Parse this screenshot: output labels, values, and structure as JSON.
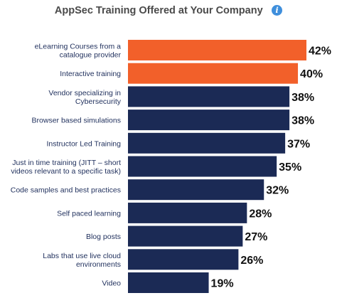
{
  "header": {
    "title": "AppSec Training Offered at Your Company",
    "info_icon": "info-icon"
  },
  "colors": {
    "highlight": "#f2602a",
    "primary": "#1b2a55",
    "label_text": "#1f2f5c",
    "title_text": "#4a4a4a",
    "info_icon": "#3f8fdc"
  },
  "chart_data": {
    "type": "bar",
    "orientation": "horizontal",
    "title": "AppSec Training Offered at Your Company",
    "xlabel": "",
    "ylabel": "",
    "xlim": [
      0,
      42
    ],
    "grid": false,
    "legend": "none",
    "categories": [
      [
        "eLearning Courses from a",
        "catalogue provider"
      ],
      [
        "Interactive training"
      ],
      [
        "Vendor specializing in",
        "Cybersecurity"
      ],
      [
        "Browser based simulations"
      ],
      [
        "Instructor Led Training"
      ],
      [
        "Just in time training (JITT – short",
        "videos relevant to a specific task)"
      ],
      [
        "Code samples and best practices"
      ],
      [
        "Self paced learning"
      ],
      [
        "Blog posts"
      ],
      [
        "Labs that use live cloud",
        "environments"
      ],
      [
        "Video"
      ]
    ],
    "values": [
      42,
      40,
      38,
      38,
      37,
      35,
      32,
      28,
      27,
      26,
      19
    ],
    "value_labels": [
      "42%",
      "40%",
      "38%",
      "38%",
      "37%",
      "35%",
      "32%",
      "28%",
      "27%",
      "26%",
      "19%"
    ],
    "highlighted": [
      true,
      true,
      false,
      false,
      false,
      false,
      false,
      false,
      false,
      false,
      false
    ]
  }
}
